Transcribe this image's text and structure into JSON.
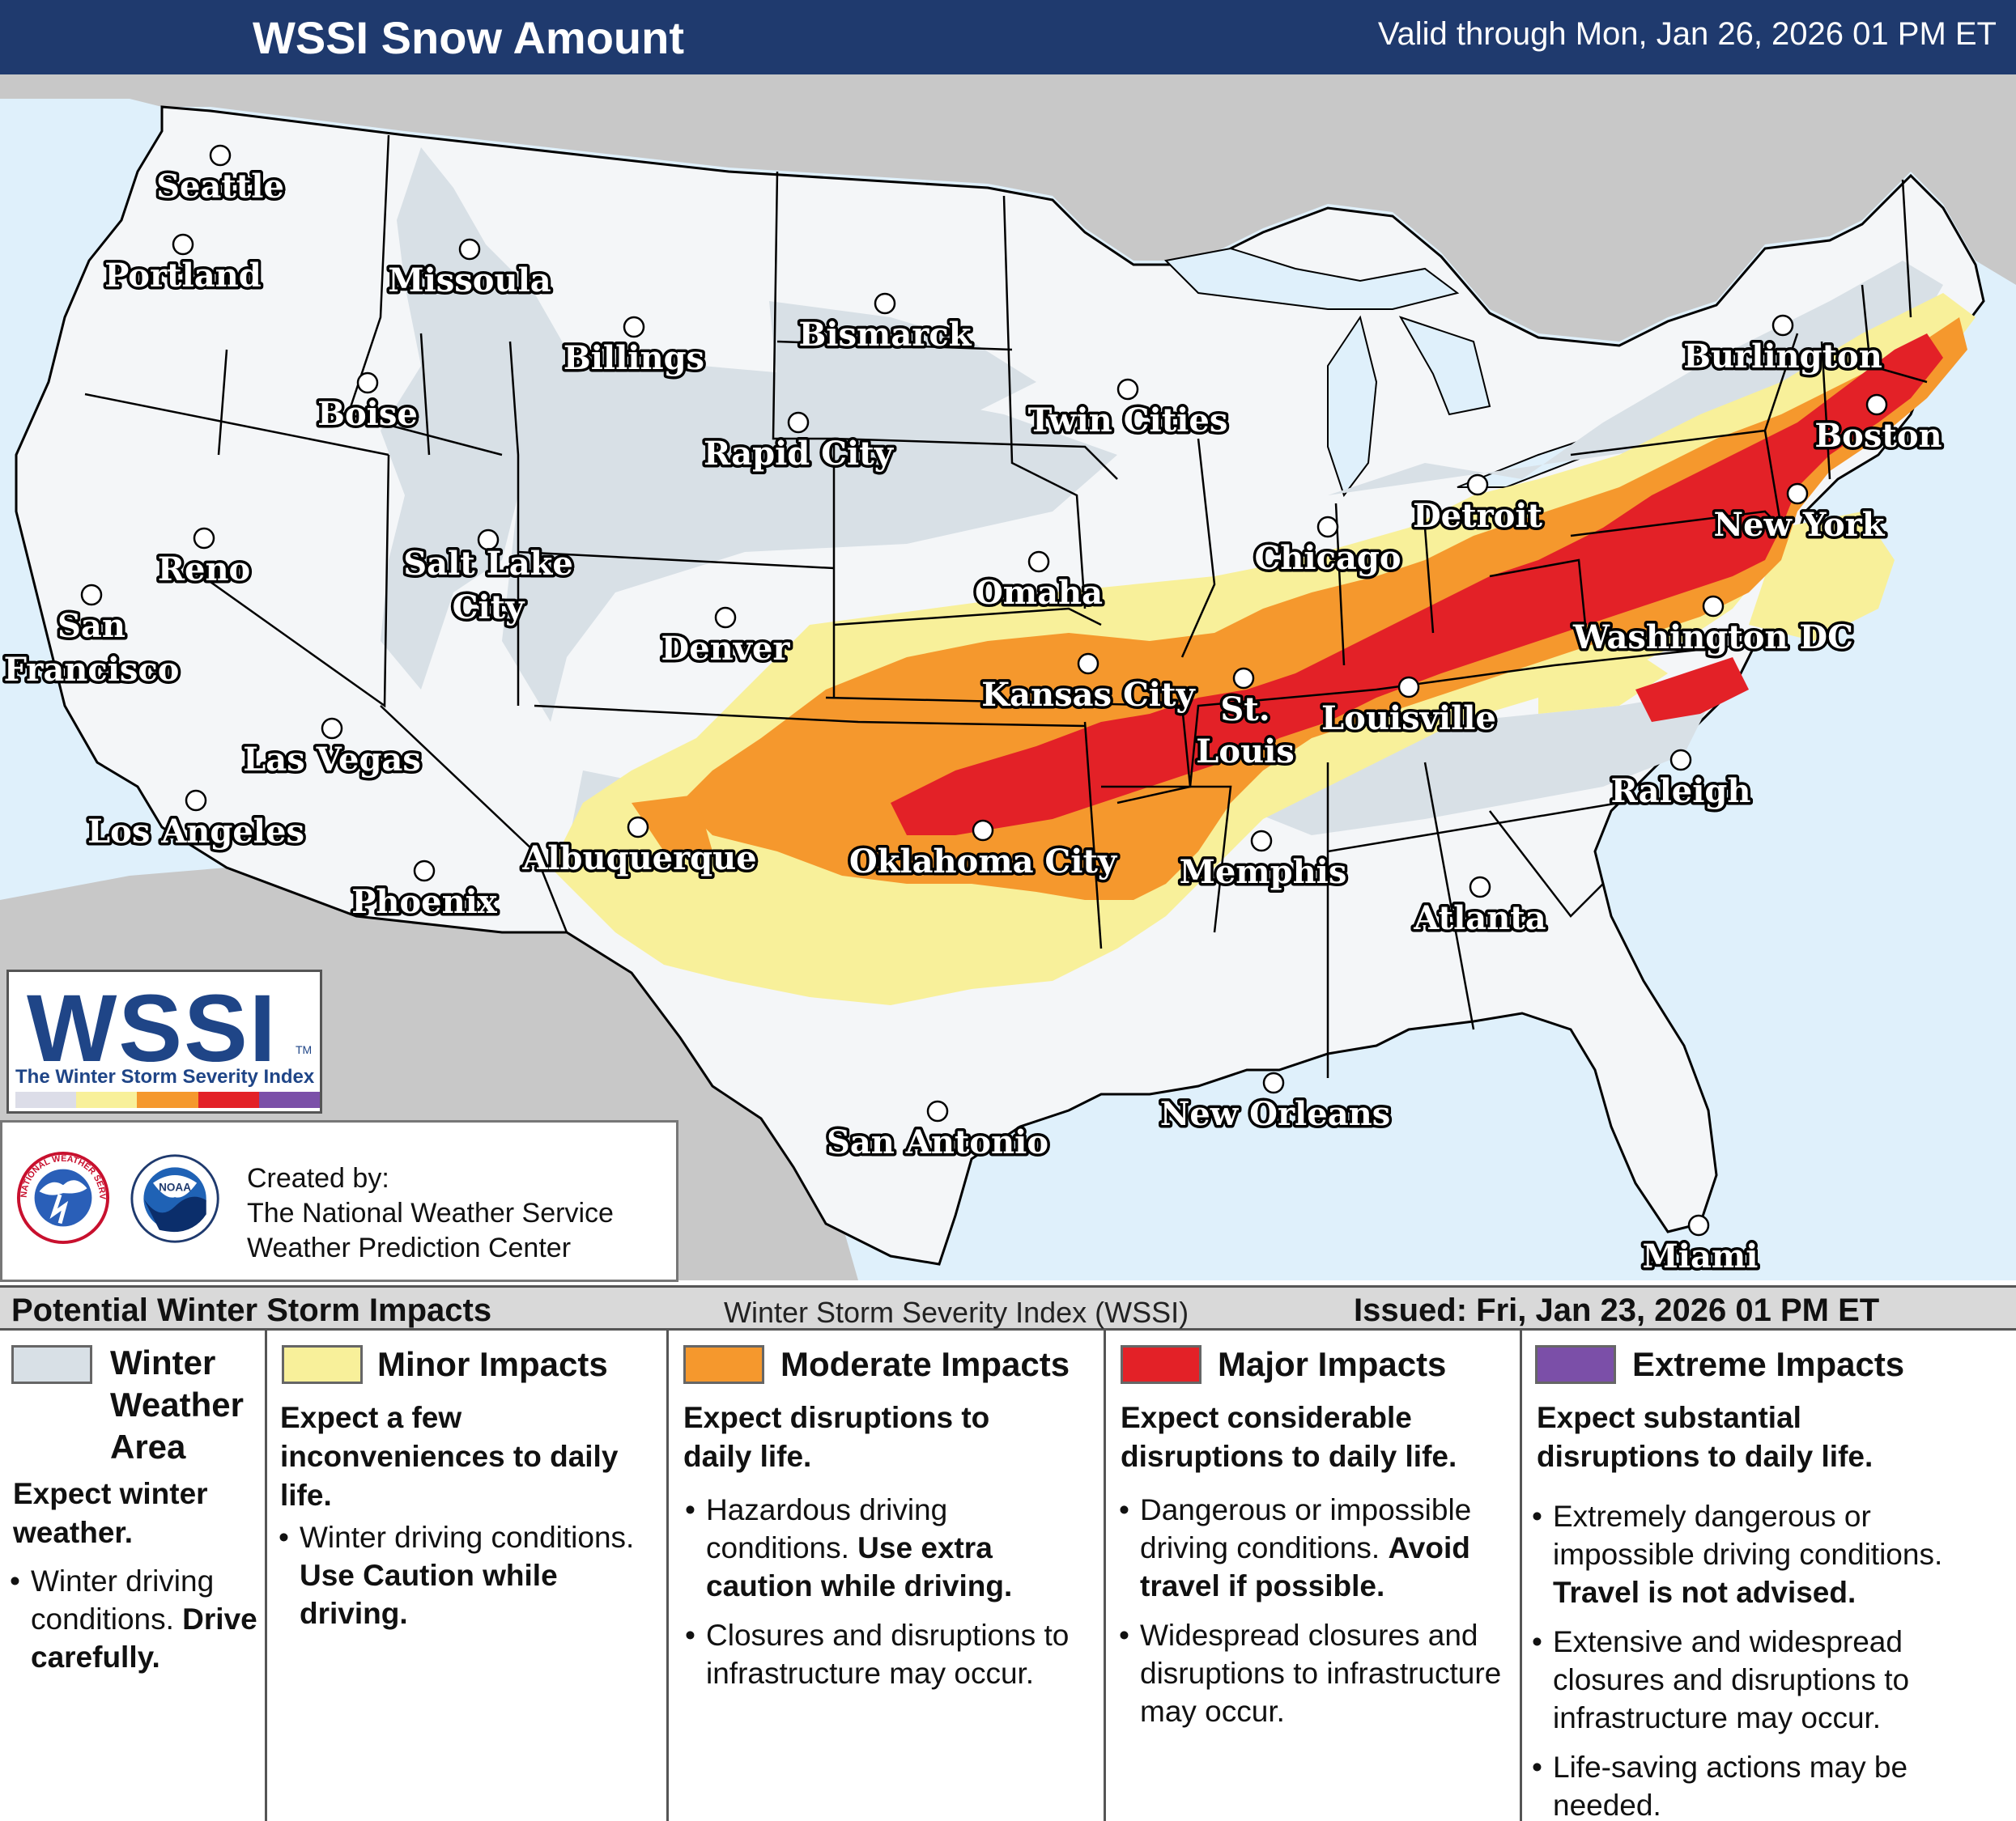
{
  "header": {
    "title": "WSSI Snow Amount",
    "valid": "Valid through Mon, Jan 26, 2026 01 PM ET"
  },
  "colors": {
    "header_bg": "#1f3a6e",
    "winter_weather_area": "#d8e0e6",
    "minor": "#f8f09a",
    "moderate": "#f5982d",
    "major": "#e32127",
    "extreme": "#7b4fa8",
    "ocean": "#dff0fb",
    "outside_land": "#c8c8c8",
    "land": "#f4f6f8"
  },
  "map": {
    "cities": [
      {
        "name": "Seattle"
      },
      {
        "name": "Portland"
      },
      {
        "name": "Missoula"
      },
      {
        "name": "Billings"
      },
      {
        "name": "Bismarck"
      },
      {
        "name": "Boise"
      },
      {
        "name": "Rapid City"
      },
      {
        "name": "Twin Cities"
      },
      {
        "name": "Burlington"
      },
      {
        "name": "Boston"
      },
      {
        "name": "Reno"
      },
      {
        "name": "Salt Lake City"
      },
      {
        "name": "Detroit"
      },
      {
        "name": "Chicago"
      },
      {
        "name": "New York"
      },
      {
        "name": "Omaha"
      },
      {
        "name": "San Francisco"
      },
      {
        "name": "Denver"
      },
      {
        "name": "Kansas City"
      },
      {
        "name": "St. Louis"
      },
      {
        "name": "Louisville"
      },
      {
        "name": "Washington DC"
      },
      {
        "name": "Las Vegas"
      },
      {
        "name": "Los Angeles"
      },
      {
        "name": "Albuquerque"
      },
      {
        "name": "Oklahoma City"
      },
      {
        "name": "Memphis"
      },
      {
        "name": "Raleigh"
      },
      {
        "name": "Phoenix"
      },
      {
        "name": "Atlanta"
      },
      {
        "name": "New Orleans"
      },
      {
        "name": "San Antonio"
      },
      {
        "name": "Miami"
      }
    ]
  },
  "logo": {
    "wordmark": "WSSI",
    "tm": "TM",
    "subtitle": "The Winter Storm Severity Index"
  },
  "credit": {
    "line1": "Created by:",
    "line2": "The National Weather Service",
    "line3": "Weather Prediction Center",
    "nws_seal_text": "NATIONAL WEATHER SERVICE",
    "noaa_seal_text": "NOAA"
  },
  "legend": {
    "header_left": "Potential Winter Storm Impacts",
    "header_mid": "Winter Storm Severity Index (WSSI)",
    "header_right": "Issued: Fri, Jan 23, 2026 01 PM ET",
    "columns": [
      {
        "title_lines": [
          "Winter",
          "Weather",
          "Area"
        ],
        "desc": "Expect winter weather.",
        "bullets": [
          {
            "text": "Winter driving conditions.",
            "strong": "Drive carefully."
          }
        ]
      },
      {
        "title_lines": [
          "Minor Impacts"
        ],
        "desc": "Expect a few inconveniences to daily life.",
        "bullets": [
          {
            "text": "Winter driving conditions.",
            "strong": "Use Caution while driving."
          }
        ]
      },
      {
        "title_lines": [
          "Moderate Impacts"
        ],
        "desc": "Expect disruptions to daily life.",
        "bullets": [
          {
            "text": "Hazardous driving conditions.",
            "strong": "Use extra caution while driving."
          },
          {
            "text": "Closures and disruptions to infrastructure may occur.",
            "strong": ""
          }
        ]
      },
      {
        "title_lines": [
          "Major Impacts"
        ],
        "desc": "Expect considerable disruptions to daily life.",
        "bullets": [
          {
            "text": "Dangerous or impossible driving conditions.",
            "strong": "Avoid travel if possible."
          },
          {
            "text": "Widespread closures and disruptions to infrastructure may occur.",
            "strong": ""
          }
        ]
      },
      {
        "title_lines": [
          "Extreme Impacts"
        ],
        "desc": "Expect substantial disruptions to daily life.",
        "bullets": [
          {
            "text": "Extremely dangerous or impossible driving conditions.",
            "strong": "Travel is not advised."
          },
          {
            "text": "Extensive and widespread closures and disruptions to infrastructure may occur.",
            "strong": ""
          },
          {
            "text": "Life-saving actions may be needed.",
            "strong": ""
          }
        ]
      }
    ]
  }
}
